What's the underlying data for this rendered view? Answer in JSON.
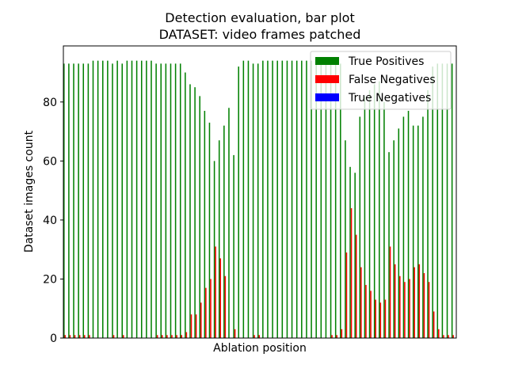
{
  "chart_data": {
    "type": "bar",
    "title": "Detection evaluation, bar plot",
    "subtitle": "DATASET: video frames patched",
    "xlabel": "Ablation position",
    "ylabel": "Dataset images count",
    "ylim": [
      0,
      99
    ],
    "yticks": [
      0,
      20,
      40,
      60,
      80
    ],
    "xticks": [],
    "grid": false,
    "legend_position": "top-right",
    "series": [
      {
        "name": "True Positives",
        "color": "#008000",
        "values": [
          93,
          93,
          93,
          93,
          93,
          93,
          94,
          94,
          94,
          94,
          93,
          94,
          93,
          94,
          94,
          94,
          94,
          94,
          94,
          93,
          93,
          93,
          93,
          93,
          93,
          90,
          86,
          85,
          82,
          77,
          73,
          60,
          67,
          72,
          78,
          62,
          92,
          94,
          94,
          93,
          93,
          94,
          94,
          94,
          94,
          94,
          94,
          94,
          94,
          94,
          94,
          94,
          94,
          94,
          94,
          93,
          93,
          93,
          67,
          58,
          56,
          75,
          82,
          84,
          86,
          87,
          80,
          63,
          67,
          71,
          75,
          77,
          72,
          72,
          75,
          84,
          92,
          93,
          93,
          93,
          93
        ]
      },
      {
        "name": "False Negatives",
        "color": "#ff0000",
        "values": [
          1,
          1,
          1,
          1,
          1,
          1,
          0,
          0,
          0,
          0,
          1,
          0,
          1,
          0,
          0,
          0,
          0,
          0,
          0,
          1,
          1,
          1,
          1,
          1,
          1,
          2,
          8,
          8,
          12,
          17,
          20,
          31,
          27,
          21,
          0,
          3,
          0,
          0,
          0,
          1,
          1,
          0,
          0,
          0,
          0,
          0,
          0,
          0,
          0,
          0,
          0,
          0,
          0,
          0,
          0,
          1,
          1,
          3,
          29,
          44,
          35,
          24,
          18,
          16,
          13,
          12,
          13,
          31,
          25,
          21,
          19,
          20,
          24,
          25,
          22,
          19,
          9,
          3,
          1,
          1,
          1
        ]
      },
      {
        "name": "True Negatives",
        "color": "#0000ff",
        "values": [
          0,
          0,
          0,
          0,
          0,
          0,
          0,
          0,
          0,
          0,
          0,
          0,
          0,
          0,
          0,
          0,
          0,
          0,
          0,
          0,
          0,
          0,
          0,
          0,
          0,
          0,
          0,
          0,
          0,
          0,
          0,
          0,
          0,
          0,
          0,
          0,
          0,
          0,
          0,
          0,
          0,
          0,
          0,
          0,
          0,
          0,
          0,
          0,
          0,
          0,
          0,
          0,
          0,
          0,
          0,
          0,
          0,
          0,
          0,
          0,
          0,
          0,
          0,
          0,
          0,
          0,
          0,
          0,
          0,
          0,
          0,
          0,
          0,
          0,
          0,
          0,
          0,
          0,
          0,
          0,
          0
        ]
      }
    ]
  }
}
